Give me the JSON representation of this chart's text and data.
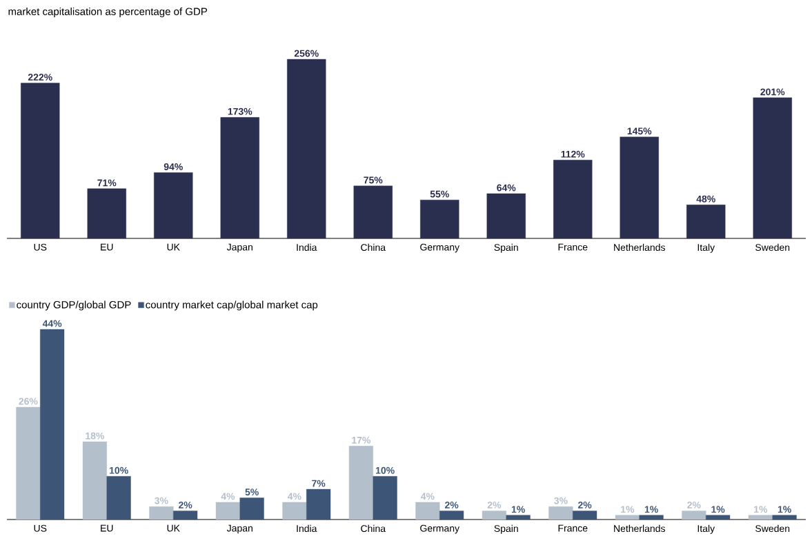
{
  "chart_data": [
    {
      "type": "bar",
      "title": "market capitalisation as percentage of GDP",
      "categories": [
        "US",
        "EU",
        "UK",
        "Japan",
        "India",
        "China",
        "Germany",
        "Spain",
        "France",
        "Netherlands",
        "Italy",
        "Sweden"
      ],
      "values": [
        222,
        71,
        94,
        173,
        256,
        75,
        55,
        64,
        112,
        145,
        48,
        201
      ],
      "value_labels": [
        "222%",
        "71%",
        "94%",
        "173%",
        "256%",
        "75%",
        "55%",
        "64%",
        "112%",
        "145%",
        "48%",
        "201%"
      ],
      "color": "#2b2f4f",
      "tick_labels": "x"
    },
    {
      "type": "bar",
      "categories": [
        "US",
        "EU",
        "UK",
        "Japan",
        "India",
        "China",
        "Germany",
        "Spain",
        "France",
        "Netherlands",
        "Italy",
        "Sweden"
      ],
      "series": [
        {
          "name": "country GDP/global GDP",
          "color": "#b4bfcc",
          "values": [
            26,
            18,
            3,
            4,
            4,
            17,
            4,
            2,
            3,
            1,
            2,
            1
          ],
          "value_labels": [
            "26%",
            "18%",
            "3%",
            "4%",
            "4%",
            "17%",
            "4%",
            "2%",
            "3%",
            "1%",
            "2%",
            "1%"
          ]
        },
        {
          "name": "country market cap/global market cap",
          "color": "#3d5577",
          "values": [
            44,
            10,
            2,
            5,
            7,
            10,
            2,
            1,
            2,
            1,
            1,
            1
          ],
          "value_labels": [
            "44%",
            "10%",
            "2%",
            "5%",
            "7%",
            "10%",
            "2%",
            "1%",
            "2%",
            "1%",
            "1%",
            "1%"
          ]
        }
      ],
      "legend": "top left",
      "tick_labels": "x"
    }
  ]
}
